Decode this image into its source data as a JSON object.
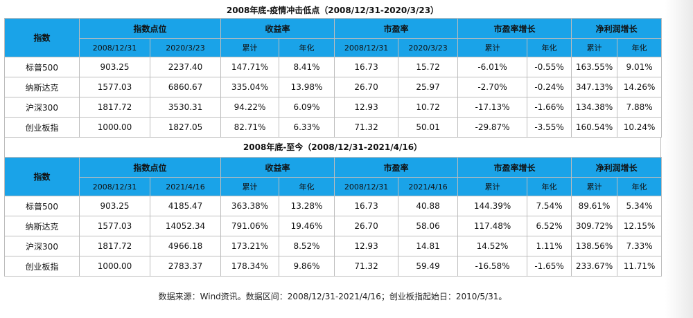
{
  "section1": {
    "title": "2008年底-疫情冲击低点（2008/12/31-2020/3/23）",
    "header": {
      "row_label": "指数",
      "groups": [
        "指数点位",
        "收益率",
        "市盈率",
        "市盈率增长",
        "净利润增长"
      ],
      "subs": [
        "2008/12/31",
        "2020/3/23",
        "累计",
        "年化",
        "2008/12/31",
        "2020/3/23",
        "累计",
        "年化",
        "累计",
        "年化"
      ]
    },
    "rows": [
      {
        "name": "标普500",
        "cells": [
          "903.25",
          "2237.40",
          "147.71%",
          "8.41%",
          "16.73",
          "15.72",
          "-6.01%",
          "-0.55%",
          "163.55%",
          "9.01%"
        ]
      },
      {
        "name": "纳斯达克",
        "cells": [
          "1577.03",
          "6860.67",
          "335.04%",
          "13.98%",
          "26.70",
          "25.97",
          "-2.70%",
          "-0.24%",
          "347.13%",
          "14.26%"
        ]
      },
      {
        "name": "沪深300",
        "cells": [
          "1817.72",
          "3530.31",
          "94.22%",
          "6.09%",
          "12.93",
          "10.72",
          "-17.13%",
          "-1.66%",
          "134.38%",
          "7.88%"
        ]
      },
      {
        "name": "创业板指",
        "cells": [
          "1000.00",
          "1827.05",
          "82.71%",
          "6.33%",
          "71.32",
          "50.01",
          "-29.87%",
          "-3.55%",
          "160.54%",
          "10.24%"
        ]
      }
    ]
  },
  "section2": {
    "title": "2008年底-至今（2008/12/31-2021/4/16）",
    "header": {
      "row_label": "指数",
      "groups": [
        "指数点位",
        "收益率",
        "市盈率",
        "市盈率增长",
        "净利润增长"
      ],
      "subs": [
        "2008/12/31",
        "2021/4/16",
        "累计",
        "年化",
        "2008/12/31",
        "2021/4/16",
        "累计",
        "年化",
        "累计",
        "年化"
      ]
    },
    "rows": [
      {
        "name": "标普500",
        "cells": [
          "903.25",
          "4185.47",
          "363.38%",
          "13.28%",
          "16.73",
          "40.88",
          "144.39%",
          "7.54%",
          "89.61%",
          "5.34%"
        ]
      },
      {
        "name": "纳斯达克",
        "cells": [
          "1577.03",
          "14052.34",
          "791.06%",
          "19.46%",
          "26.70",
          "58.06",
          "117.48%",
          "6.52%",
          "309.72%",
          "12.15%"
        ]
      },
      {
        "name": "沪深300",
        "cells": [
          "1817.72",
          "4966.18",
          "173.21%",
          "8.52%",
          "12.93",
          "14.81",
          "14.52%",
          "1.11%",
          "138.56%",
          "7.33%"
        ]
      },
      {
        "name": "创业板指",
        "cells": [
          "1000.00",
          "2783.37",
          "178.34%",
          "9.86%",
          "71.32",
          "59.49",
          "-16.58%",
          "-1.65%",
          "233.67%",
          "11.71%"
        ]
      }
    ]
  },
  "footnote": "数据来源：Wind资讯。数据区间：2008/12/31-2021/4/16；创业板指起始日：2010/5/31。",
  "colors": {
    "header_bg": "#1aa3e8",
    "border": "#bdbdbd"
  }
}
